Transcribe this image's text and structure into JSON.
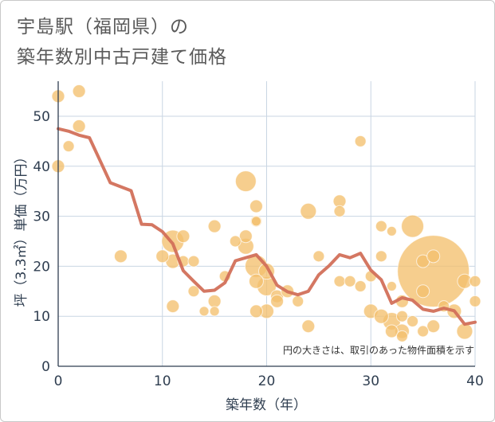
{
  "title_line1": "宇島駅（福岡県）の",
  "title_line2": "築年数別中古戸建て価格",
  "chart_data": {
    "type": "scatter",
    "title": "宇島駅（福岡県）の築年数別中古戸建て価格",
    "xlabel": "築年数（年）",
    "ylabel": "坪（3.3㎡）単価（万円）",
    "xlim": [
      0,
      40
    ],
    "ylim": [
      0,
      57
    ],
    "xticks": [
      0,
      10,
      20,
      30,
      40
    ],
    "yticks": [
      0,
      10,
      20,
      30,
      40,
      50
    ],
    "grid": true,
    "note": "円の大きさは、取引のあった物件面積を示す",
    "colors": {
      "bubble": "#f3c06e",
      "bubble_edge": "#e8b45d",
      "line": "#d2705a",
      "grid": "#c9d6e3"
    },
    "points": [
      {
        "x": 0,
        "y": 54,
        "s": 8
      },
      {
        "x": 0,
        "y": 40,
        "s": 8
      },
      {
        "x": 1,
        "y": 44,
        "s": 7
      },
      {
        "x": 2,
        "y": 55,
        "s": 8
      },
      {
        "x": 2,
        "y": 48,
        "s": 8
      },
      {
        "x": 6,
        "y": 22,
        "s": 8
      },
      {
        "x": 10,
        "y": 22,
        "s": 8
      },
      {
        "x": 11,
        "y": 25,
        "s": 14
      },
      {
        "x": 11,
        "y": 21,
        "s": 9
      },
      {
        "x": 11,
        "y": 12,
        "s": 8
      },
      {
        "x": 12,
        "y": 26,
        "s": 8
      },
      {
        "x": 12,
        "y": 21,
        "s": 7
      },
      {
        "x": 13,
        "y": 21,
        "s": 7
      },
      {
        "x": 13,
        "y": 15,
        "s": 7
      },
      {
        "x": 14,
        "y": 11,
        "s": 6
      },
      {
        "x": 15,
        "y": 28,
        "s": 8
      },
      {
        "x": 15,
        "y": 13,
        "s": 8
      },
      {
        "x": 15,
        "y": 11,
        "s": 6
      },
      {
        "x": 16,
        "y": 18,
        "s": 7
      },
      {
        "x": 17,
        "y": 25,
        "s": 7
      },
      {
        "x": 18,
        "y": 37,
        "s": 13
      },
      {
        "x": 18,
        "y": 26,
        "s": 8
      },
      {
        "x": 18,
        "y": 24,
        "s": 10
      },
      {
        "x": 19,
        "y": 32,
        "s": 8
      },
      {
        "x": 19,
        "y": 29,
        "s": 7
      },
      {
        "x": 19,
        "y": 29,
        "s": 6
      },
      {
        "x": 19,
        "y": 20,
        "s": 14
      },
      {
        "x": 19,
        "y": 17,
        "s": 9
      },
      {
        "x": 19,
        "y": 11,
        "s": 8
      },
      {
        "x": 20,
        "y": 19,
        "s": 10
      },
      {
        "x": 20,
        "y": 16,
        "s": 12
      },
      {
        "x": 20,
        "y": 11,
        "s": 9
      },
      {
        "x": 21,
        "y": 14,
        "s": 8
      },
      {
        "x": 21,
        "y": 13,
        "s": 8
      },
      {
        "x": 22,
        "y": 15,
        "s": 8
      },
      {
        "x": 23,
        "y": 13,
        "s": 7
      },
      {
        "x": 24,
        "y": 31,
        "s": 10
      },
      {
        "x": 24,
        "y": 8,
        "s": 8
      },
      {
        "x": 25,
        "y": 22,
        "s": 7
      },
      {
        "x": 27,
        "y": 33,
        "s": 8
      },
      {
        "x": 27,
        "y": 31,
        "s": 7
      },
      {
        "x": 27,
        "y": 17,
        "s": 7
      },
      {
        "x": 28,
        "y": 17,
        "s": 7
      },
      {
        "x": 29,
        "y": 45,
        "s": 7
      },
      {
        "x": 29,
        "y": 16,
        "s": 7
      },
      {
        "x": 30,
        "y": 18,
        "s": 7
      },
      {
        "x": 30,
        "y": 11,
        "s": 9
      },
      {
        "x": 31,
        "y": 28,
        "s": 7
      },
      {
        "x": 31,
        "y": 22,
        "s": 7
      },
      {
        "x": 31,
        "y": 10,
        "s": 9
      },
      {
        "x": 32,
        "y": 27,
        "s": 6
      },
      {
        "x": 32,
        "y": 16,
        "s": 6
      },
      {
        "x": 32,
        "y": 9,
        "s": 11
      },
      {
        "x": 32,
        "y": 7,
        "s": 8
      },
      {
        "x": 33,
        "y": 13,
        "s": 8
      },
      {
        "x": 33,
        "y": 10,
        "s": 7
      },
      {
        "x": 33,
        "y": 7,
        "s": 9
      },
      {
        "x": 33,
        "y": 6,
        "s": 7
      },
      {
        "x": 34,
        "y": 28,
        "s": 14
      },
      {
        "x": 34,
        "y": 9,
        "s": 7
      },
      {
        "x": 35,
        "y": 21,
        "s": 8
      },
      {
        "x": 35,
        "y": 15,
        "s": 8
      },
      {
        "x": 35,
        "y": 7,
        "s": 7
      },
      {
        "x": 36,
        "y": 19,
        "s": 45
      },
      {
        "x": 36,
        "y": 22,
        "s": 8
      },
      {
        "x": 36,
        "y": 8,
        "s": 8
      },
      {
        "x": 37,
        "y": 12,
        "s": 7
      },
      {
        "x": 38,
        "y": 11,
        "s": 9
      },
      {
        "x": 39,
        "y": 17,
        "s": 9
      },
      {
        "x": 39,
        "y": 7,
        "s": 10
      },
      {
        "x": 40,
        "y": 17,
        "s": 7
      },
      {
        "x": 40,
        "y": 13,
        "s": 7
      }
    ],
    "trend": {
      "x": [
        0,
        1,
        2,
        3,
        4,
        5,
        6,
        7,
        8,
        9,
        10,
        11,
        12,
        13,
        14,
        15,
        16,
        17,
        18,
        19,
        20,
        21,
        22,
        23,
        24,
        25,
        26,
        27,
        28,
        29,
        30,
        31,
        32,
        33,
        34,
        35,
        36,
        37,
        38,
        39,
        40
      ],
      "y": [
        47.5,
        47,
        46.2,
        45.7,
        41.2,
        36.7,
        35.9,
        35.1,
        28.4,
        28.3,
        26.9,
        24.5,
        19.1,
        17,
        15,
        15.2,
        16.7,
        21.1,
        21.7,
        22.3,
        20,
        16.2,
        14.9,
        14.3,
        15,
        18.3,
        20.1,
        22.3,
        21.7,
        22.6,
        19.2,
        17.3,
        12.6,
        13.7,
        13.2,
        11.4,
        11,
        11.6,
        11.1,
        8.4,
        8.8
      ]
    }
  }
}
